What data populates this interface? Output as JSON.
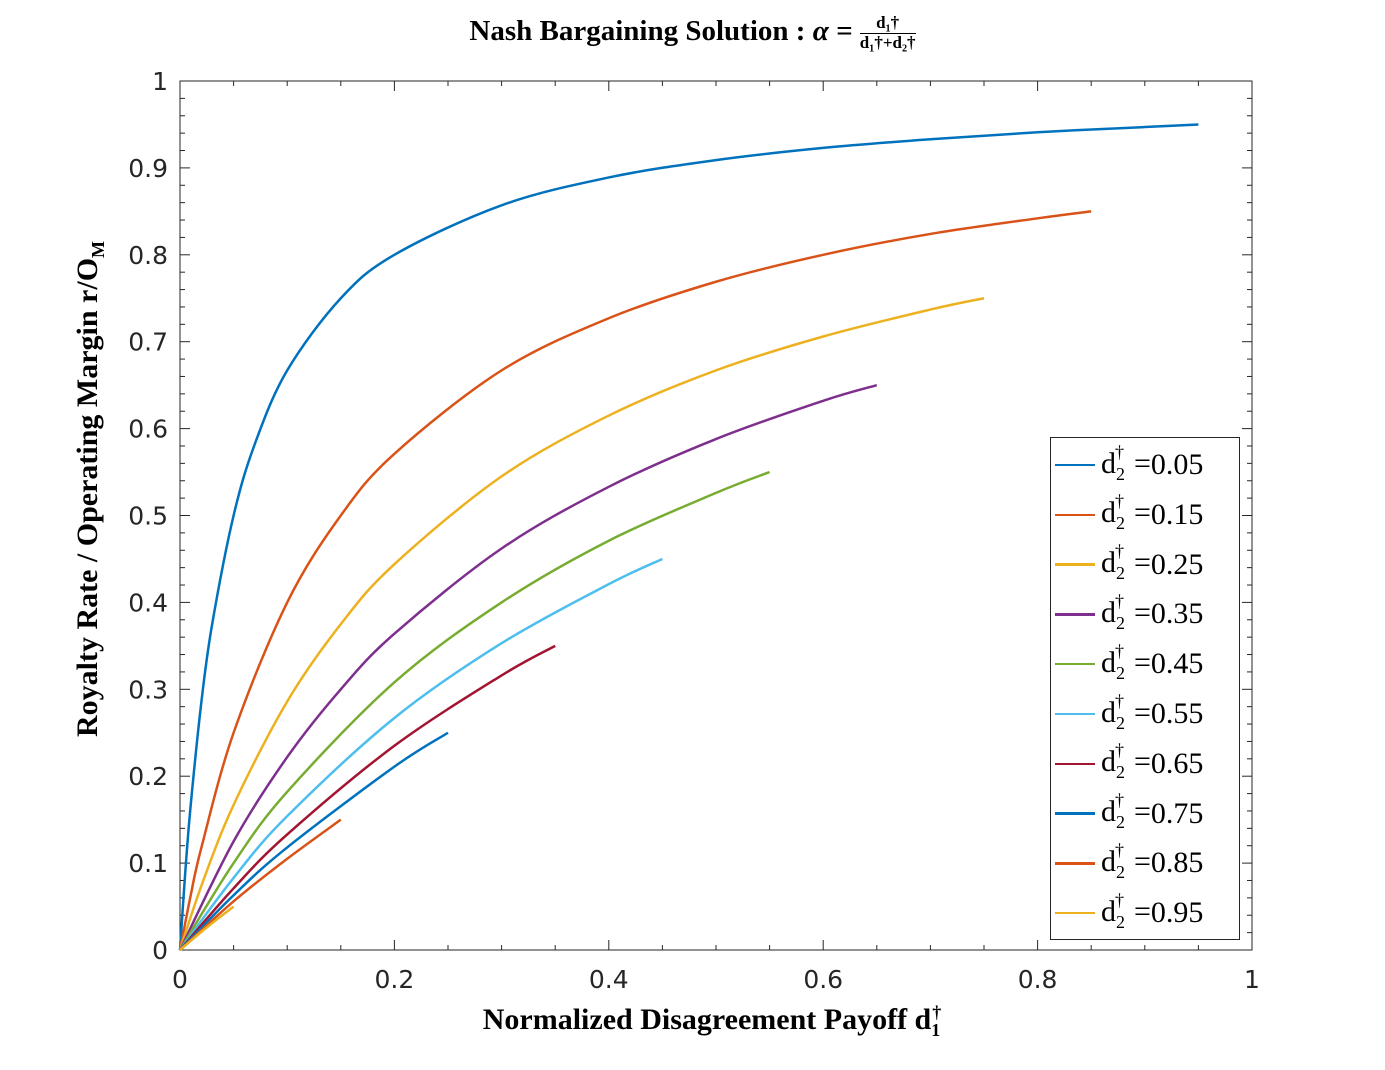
{
  "chart_data": {
    "type": "line",
    "title": {
      "prefix": "Nash Bargaining Solution : ",
      "alpha": "α =",
      "num": "d₁†",
      "den": "d₁†+d₂†"
    },
    "xlabel": {
      "text": "Normalized Disagreement Payoff  d",
      "sub": "1",
      "sup": "†"
    },
    "ylabel": {
      "text": "Royalty Rate / Operating Margin  r/O",
      "sub": "M"
    },
    "xlim": [
      0,
      1
    ],
    "ylim": [
      0,
      1
    ],
    "xticks": [
      "0",
      "0.2",
      "0.4",
      "0.6",
      "0.8",
      "1"
    ],
    "yticks": [
      "0",
      "0.1",
      "0.2",
      "0.3",
      "0.4",
      "0.5",
      "0.6",
      "0.7",
      "0.8",
      "0.9",
      "1"
    ],
    "grid": false,
    "legend_position": "bottom-right",
    "legend_symbol": {
      "base": "d",
      "sub": "2",
      "sup": "†",
      "eq": "="
    },
    "series": [
      {
        "name": "0.05",
        "color": "#0072BD",
        "x": [
          0,
          0.005,
          0.01,
          0.02,
          0.03,
          0.05,
          0.07,
          0.1,
          0.15,
          0.2,
          0.3,
          0.4,
          0.5,
          0.6,
          0.7,
          0.8,
          0.9,
          0.95
        ],
        "y": [
          0,
          0.091,
          0.167,
          0.286,
          0.375,
          0.5,
          0.583,
          0.667,
          0.75,
          0.8,
          0.857,
          0.889,
          0.909,
          0.923,
          0.933,
          0.941,
          0.947,
          0.95
        ]
      },
      {
        "name": "0.15",
        "color": "#D95319",
        "x": [
          0,
          0.01,
          0.02,
          0.05,
          0.1,
          0.15,
          0.2,
          0.3,
          0.4,
          0.5,
          0.6,
          0.7,
          0.8,
          0.85
        ],
        "y": [
          0,
          0.063,
          0.118,
          0.25,
          0.4,
          0.5,
          0.571,
          0.667,
          0.727,
          0.769,
          0.8,
          0.824,
          0.842,
          0.85
        ]
      },
      {
        "name": "0.25",
        "color": "#EDB120",
        "x": [
          0,
          0.02,
          0.05,
          0.1,
          0.15,
          0.2,
          0.3,
          0.4,
          0.5,
          0.6,
          0.7,
          0.75
        ],
        "y": [
          0,
          0.074,
          0.167,
          0.286,
          0.375,
          0.444,
          0.545,
          0.615,
          0.667,
          0.706,
          0.737,
          0.75
        ]
      },
      {
        "name": "0.35",
        "color": "#7E2F8E",
        "x": [
          0,
          0.05,
          0.1,
          0.15,
          0.2,
          0.3,
          0.4,
          0.5,
          0.6,
          0.65
        ],
        "y": [
          0,
          0.125,
          0.222,
          0.3,
          0.364,
          0.462,
          0.533,
          0.588,
          0.632,
          0.65
        ]
      },
      {
        "name": "0.45",
        "color": "#77AC30",
        "x": [
          0,
          0.05,
          0.1,
          0.2,
          0.3,
          0.4,
          0.5,
          0.55
        ],
        "y": [
          0,
          0.1,
          0.182,
          0.308,
          0.4,
          0.471,
          0.526,
          0.55
        ]
      },
      {
        "name": "0.55",
        "color": "#4DBEEE",
        "x": [
          0,
          0.05,
          0.1,
          0.2,
          0.3,
          0.4,
          0.45
        ],
        "y": [
          0,
          0.083,
          0.154,
          0.267,
          0.353,
          0.421,
          0.45
        ]
      },
      {
        "name": "0.65",
        "color": "#A2142F",
        "x": [
          0,
          0.05,
          0.1,
          0.2,
          0.3,
          0.35
        ],
        "y": [
          0,
          0.071,
          0.133,
          0.235,
          0.316,
          0.35
        ]
      },
      {
        "name": "0.75",
        "color": "#0072BD",
        "x": [
          0,
          0.05,
          0.1,
          0.2,
          0.25
        ],
        "y": [
          0,
          0.063,
          0.118,
          0.211,
          0.25
        ]
      },
      {
        "name": "0.85",
        "color": "#D95319",
        "x": [
          0,
          0.05,
          0.1,
          0.15
        ],
        "y": [
          0,
          0.056,
          0.105,
          0.15
        ]
      },
      {
        "name": "0.95",
        "color": "#EDB120",
        "x": [
          0,
          0.025,
          0.05
        ],
        "y": [
          0,
          0.026,
          0.05
        ]
      }
    ]
  }
}
